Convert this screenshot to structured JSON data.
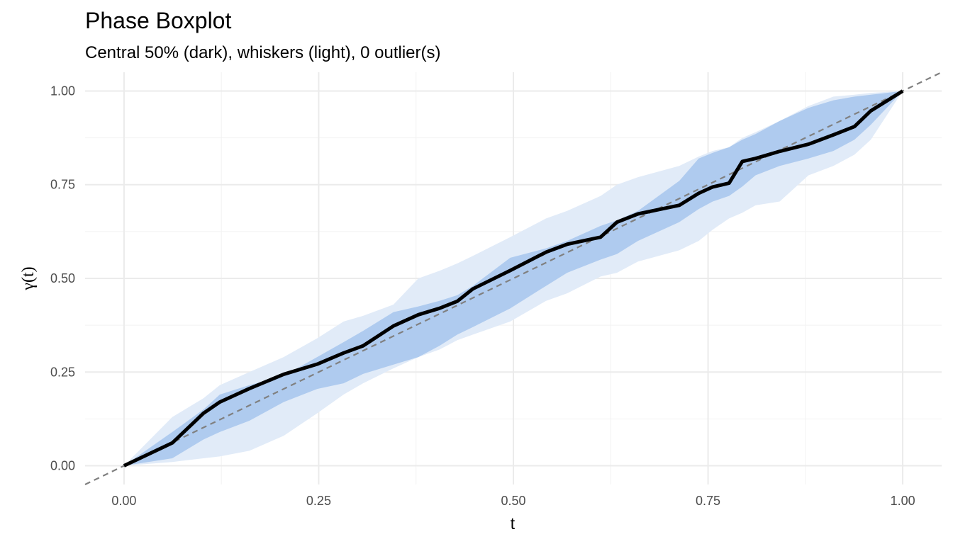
{
  "chart_data": {
    "type": "band-line",
    "title": "Phase Boxplot",
    "subtitle": "Central 50% (dark), whiskers (light), 0 outlier(s)",
    "x_label": "t",
    "y_label": "γ(t)",
    "x": [
      0,
      0.062,
      0.102,
      0.123,
      0.161,
      0.205,
      0.248,
      0.282,
      0.307,
      0.346,
      0.378,
      0.405,
      0.428,
      0.448,
      0.496,
      0.542,
      0.569,
      0.612,
      0.633,
      0.66,
      0.713,
      0.738,
      0.756,
      0.777,
      0.794,
      0.811,
      0.842,
      0.879,
      0.911,
      0.938,
      0.959,
      1
    ],
    "bands": [
      {
        "color": "#e1ebf8",
        "lower": [
          0,
          0.01,
          0.02,
          0.025,
          0.04,
          0.08,
          0.14,
          0.19,
          0.22,
          0.26,
          0.29,
          0.31,
          0.335,
          0.35,
          0.385,
          0.44,
          0.46,
          0.505,
          0.515,
          0.545,
          0.575,
          0.6,
          0.63,
          0.66,
          0.675,
          0.695,
          0.705,
          0.775,
          0.8,
          0.83,
          0.87,
          1
        ],
        "upper": [
          0,
          0.13,
          0.18,
          0.215,
          0.25,
          0.29,
          0.34,
          0.385,
          0.4,
          0.43,
          0.5,
          0.52,
          0.54,
          0.56,
          0.61,
          0.66,
          0.68,
          0.72,
          0.75,
          0.77,
          0.8,
          0.825,
          0.84,
          0.85,
          0.875,
          0.89,
          0.92,
          0.96,
          0.985,
          0.99,
          0.995,
          1
        ]
      },
      {
        "color": "#afcbef",
        "lower": [
          0,
          0.02,
          0.07,
          0.09,
          0.12,
          0.17,
          0.205,
          0.22,
          0.245,
          0.27,
          0.29,
          0.32,
          0.35,
          0.37,
          0.42,
          0.48,
          0.515,
          0.55,
          0.565,
          0.6,
          0.65,
          0.685,
          0.705,
          0.72,
          0.745,
          0.775,
          0.8,
          0.82,
          0.84,
          0.87,
          0.91,
          1
        ],
        "upper": [
          0,
          0.09,
          0.15,
          0.19,
          0.215,
          0.24,
          0.29,
          0.33,
          0.36,
          0.41,
          0.425,
          0.44,
          0.455,
          0.48,
          0.555,
          0.58,
          0.6,
          0.64,
          0.655,
          0.68,
          0.76,
          0.82,
          0.835,
          0.85,
          0.87,
          0.885,
          0.92,
          0.955,
          0.975,
          0.985,
          0.99,
          1
        ]
      }
    ],
    "series": [
      {
        "color": "#000000",
        "values": [
          0,
          0.061,
          0.14,
          0.17,
          0.206,
          0.244,
          0.271,
          0.301,
          0.32,
          0.373,
          0.403,
          0.42,
          0.439,
          0.472,
          0.521,
          0.57,
          0.591,
          0.61,
          0.65,
          0.672,
          0.695,
          0.727,
          0.744,
          0.754,
          0.812,
          0.82,
          0.839,
          0.858,
          0.883,
          0.905,
          0.947,
          1
        ]
      }
    ],
    "reference_line": "identity",
    "reference_color": "#808080",
    "xlim": [
      -0.05,
      1.05
    ],
    "ylim": [
      -0.05,
      1.05
    ],
    "xticks": [
      {
        "value": 0,
        "label": "0.00"
      },
      {
        "value": 0.25,
        "label": "0.25"
      },
      {
        "value": 0.5,
        "label": "0.50"
      },
      {
        "value": 0.75,
        "label": "0.75"
      },
      {
        "value": 1,
        "label": "1.00"
      }
    ],
    "yticks": [
      {
        "value": 0,
        "label": "0.00"
      },
      {
        "value": 0.25,
        "label": "0.25"
      },
      {
        "value": 0.5,
        "label": "0.50"
      },
      {
        "value": 0.75,
        "label": "0.75"
      },
      {
        "value": 1,
        "label": "1.00"
      }
    ],
    "grid": true,
    "minor_grid": true
  }
}
